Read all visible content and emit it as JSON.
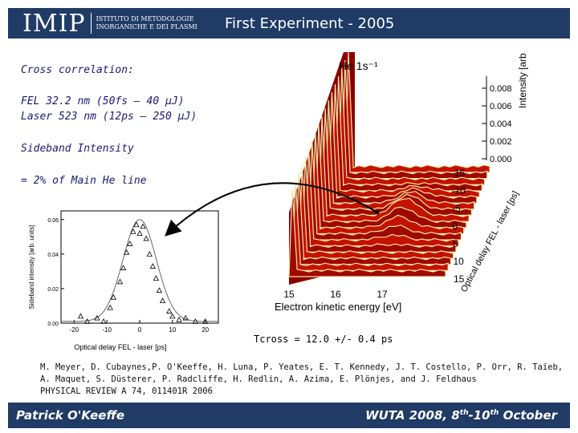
{
  "header": {
    "logo_mark": "IMIP",
    "logo_line1": "ISTITUTO DI METODOLOGIE",
    "logo_line2": "INORGANICHE E DEI PLASMI",
    "title": "First Experiment - 2005"
  },
  "body_text": {
    "cross_correlation": "Cross correlation:",
    "fel": "FEL 32.2 nm (50fs – 40 µJ)",
    "laser": "Laser 523 nm (12ps – 250 µJ)",
    "sideband_intensity": "Sideband Intensity",
    "ratio": "= 2% of Main He line",
    "tcross": "Tcross = 12.0 +/- 0.4 ps"
  },
  "citation": {
    "line1": "M. Meyer, D. Cubaynes,P. O'Keeffe, H. Luna, P. Yeates, E. T. Kennedy, J. T. Costello, P. Orr, R. Taïeb,",
    "line2": "A. Maquet, S. Düsterer, P. Radcliffe, H. Redlin, A. Azima, E. Plönjes, and J. Feldhaus",
    "line3": "PHYSICAL REVIEW A 74, 011401R 2006"
  },
  "footer": {
    "presenter": "Patrick O'Keeffe",
    "conference": "WUTA 2008, 8th-10th October"
  },
  "colors": {
    "bar": "#1f3b66",
    "text": "#1a1a7a",
    "surface_dark": "#7a0000",
    "surface_mid": "#c01000",
    "surface_light": "#f4e6a0"
  },
  "chart_data": [
    {
      "type": "line",
      "title": "He 1s⁻¹",
      "xlabel": "Electron kinetic energy [eV]",
      "ylabel": "Intensity [arb. units]",
      "zlabel": "Optical delay FEL - laser [ps]",
      "x_ticks": [
        "15",
        "16",
        "17"
      ],
      "intensity_ticks": [
        "0.008",
        "0.006",
        "0.004",
        "0.002",
        "0.000"
      ],
      "delay_ticks": [
        "-15",
        "-10",
        "-5",
        "0",
        "5",
        "10",
        "15"
      ]
    },
    {
      "type": "scatter",
      "xlabel": "Optical delay FEL - laser [ps]",
      "ylabel": "Sideband intensity [arb. units]",
      "x_ticks": [
        "-20",
        "-10",
        "0",
        "10",
        "20"
      ],
      "y_ticks": [
        "0.00",
        "0.02",
        "0.04",
        "0.06"
      ],
      "xlim": [
        -24,
        24
      ],
      "ylim": [
        0,
        0.065
      ],
      "points": {
        "x": [
          -18,
          -16,
          -13,
          -11,
          -9,
          -8,
          -6,
          -5,
          -4,
          -3,
          -2,
          -1,
          0,
          1,
          2,
          3,
          4,
          5,
          6,
          7,
          9,
          10,
          12,
          14,
          17,
          20
        ],
        "y": [
          0.004,
          0.001,
          0.003,
          0.001,
          0.009,
          0.015,
          0.024,
          0.032,
          0.041,
          0.046,
          0.053,
          0.057,
          0.052,
          0.056,
          0.049,
          0.04,
          0.033,
          0.026,
          0.019,
          0.013,
          0.007,
          0.004,
          0.002,
          0.003,
          0.001,
          0.001
        ]
      },
      "fit": {
        "type": "gaussian",
        "center": 0,
        "fwhm": 12.0,
        "amplitude": 0.059,
        "offset": 0.001
      }
    }
  ]
}
